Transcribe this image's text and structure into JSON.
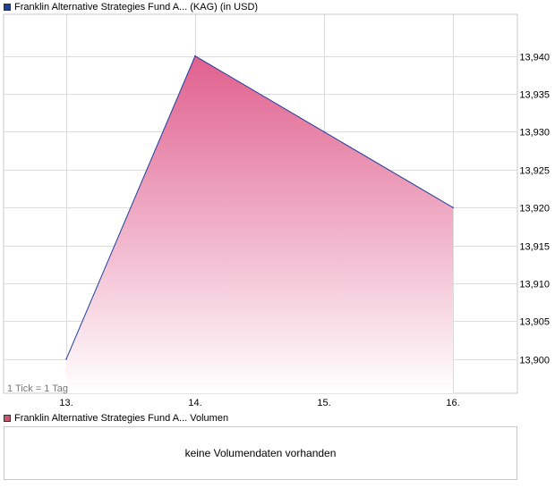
{
  "legend": {
    "price_label": "Franklin Alternative Strategies Fund A... (KAG) (in USD)",
    "price_color": "#1f3f9f",
    "volume_label": "Franklin Alternative Strategies Fund A... Volumen",
    "volume_color": "#c8566e"
  },
  "tick_note": "1 Tick = 1 Tag",
  "volume_panel": {
    "message": "keine Volumendaten vorhanden"
  },
  "chart_data": {
    "type": "area",
    "title": "",
    "xlabel": "",
    "ylabel": "",
    "categories": [
      "13.",
      "14.",
      "15.",
      "16."
    ],
    "series": [
      {
        "name": "Franklin Alternative Strategies Fund A... (KAG) (in USD)",
        "values": [
          13.9,
          13.94,
          13.93,
          13.92
        ]
      }
    ],
    "ylim": [
      13.8955,
      13.9455
    ],
    "yticks": [
      13.9,
      13.905,
      13.91,
      13.915,
      13.92,
      13.925,
      13.93,
      13.935,
      13.94
    ],
    "ytick_labels": [
      "13,900",
      "13,905",
      "13,910",
      "13,915",
      "13,920",
      "13,925",
      "13,930",
      "13,935",
      "13,940"
    ],
    "y_axis_side": "right",
    "grid": true,
    "line_color": "#1f3f9f",
    "fill_top_color": "#e0608e",
    "fill_bottom_color": "#ffffff"
  }
}
